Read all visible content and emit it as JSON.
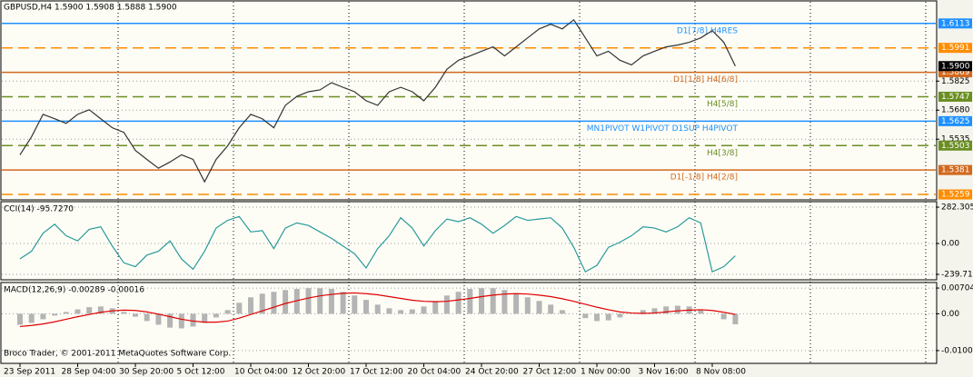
{
  "chart_data": [
    {
      "type": "line",
      "title": "GBPUSD,H4  1.5900 1.5908 1.5888 1.5900",
      "footer": "Broco Trader, © 2001-2011 MetaQuotes Software Corp.",
      "categories": [
        "23 Sep 2011",
        null,
        null,
        null,
        null,
        "28 Sep 04:00",
        null,
        null,
        null,
        null,
        "30 Sep 20:00",
        null,
        null,
        null,
        null,
        "5 Oct 12:00",
        null,
        null,
        null,
        null,
        "10 Oct 04:00",
        null,
        null,
        null,
        null,
        "12 Oct 20:00",
        null,
        null,
        null,
        null,
        "17 Oct 12:00",
        null,
        null,
        null,
        null,
        "20 Oct 04:00",
        null,
        null,
        null,
        null,
        "24 Oct 20:00",
        null,
        null,
        null,
        null,
        "27 Oct 12:00",
        null,
        null,
        null,
        null,
        "1 Nov 00:00",
        null,
        null,
        null,
        null,
        "3 Nov 16:00",
        null,
        null,
        null,
        null,
        "8 Nov 08:00",
        null,
        null
      ],
      "series": [
        {
          "color": "#333333",
          "values": [
            1.5457,
            1.5547,
            1.5659,
            1.5637,
            1.5614,
            1.5659,
            1.5682,
            1.5637,
            1.5592,
            1.5569,
            1.5479,
            1.5434,
            1.539,
            1.5421,
            1.5457,
            1.5434,
            1.5322,
            1.5434,
            1.5502,
            1.5592,
            1.5659,
            1.5637,
            1.5592,
            1.5704,
            1.5749,
            1.5772,
            1.5781,
            1.5817,
            1.5794,
            1.5772,
            1.5727,
            1.5704,
            1.5772,
            1.5794,
            1.5772,
            1.5727,
            1.5794,
            1.5884,
            1.5929,
            1.5951,
            1.5974,
            1.5996,
            1.5951,
            1.5996,
            1.6041,
            1.6086,
            1.6109,
            1.6086,
            1.6131,
            1.6041,
            1.5951,
            1.5974,
            1.5929,
            1.5906,
            1.5951,
            1.5974,
            1.5996,
            1.6005,
            1.6019,
            1.6041,
            1.6077,
            1.6019,
            1.59
          ]
        }
      ],
      "ylim": [
        1.5232,
        1.6221
      ],
      "yticks": [
        1.5825,
        {
          "value": 1.568,
          "label": "1.5680"
        },
        1.5535
      ],
      "current": {
        "value": 1.59,
        "label": "1.5900"
      },
      "levels": [
        {
          "value": 1.6113,
          "color": "#1e90ff",
          "dash": false,
          "label": "D1[7/8] H4RES"
        },
        {
          "value": 1.5991,
          "color": "#ff8c00",
          "dash": true
        },
        {
          "value": 1.5869,
          "color": "#d2691e",
          "dash": false,
          "label": "D1[1/8] H4[6/8]"
        },
        {
          "value": 1.5747,
          "color": "#6b8e23",
          "dash": true,
          "label": "H4[5/8]"
        },
        {
          "value": 1.5625,
          "color": "#1e90ff",
          "dash": false,
          "label": "MN1PIVOT W1PIVOT D1SUP H4PIVOT"
        },
        {
          "value": 1.5503,
          "color": "#6b8e23",
          "dash": true,
          "label": "H4[3/8]"
        },
        {
          "value": 1.5381,
          "color": "#d2691e",
          "dash": false,
          "label": "D1[-1/8] H4[2/8]"
        },
        {
          "value": 1.5259,
          "color": "#ff8c00",
          "dash": true
        }
      ]
    },
    {
      "type": "line",
      "title": "CCI(14) -95.7270",
      "series": [
        {
          "color": "#2a9a9a",
          "values": [
            -120,
            -60,
            80,
            150,
            60,
            20,
            110,
            130,
            -20,
            -150,
            -180,
            -90,
            -60,
            20,
            -120,
            -200,
            -60,
            120,
            180,
            210,
            90,
            100,
            -40,
            120,
            160,
            140,
            90,
            40,
            -20,
            -80,
            -190,
            -40,
            60,
            200,
            120,
            -20,
            100,
            190,
            170,
            200,
            150,
            80,
            140,
            210,
            180,
            190,
            200,
            120,
            -30,
            -220,
            -170,
            -30,
            10,
            60,
            130,
            120,
            90,
            130,
            200,
            160,
            -220,
            -180,
            -95.727
          ]
        }
      ],
      "ylim": [
        -282,
        325
      ],
      "yticks": [
        282.305,
        {
          "value": 0,
          "label": "0.00"
        },
        -239.711
      ]
    },
    {
      "type": "macd",
      "title": "MACD(12,26,9) -0.00289 -0.00016",
      "series": [
        {
          "color": "#b4b4b4",
          "values": [
            -0.003,
            -0.0025,
            -0.0015,
            -0.0005,
            0.0005,
            0.0012,
            0.0018,
            0.002,
            0.0015,
            0.0005,
            -0.0008,
            -0.002,
            -0.003,
            -0.0038,
            -0.004,
            -0.0035,
            -0.0025,
            -0.001,
            0.001,
            0.003,
            0.0045,
            0.0055,
            0.006,
            0.0065,
            0.0068,
            0.007,
            0.007,
            0.0068,
            0.006,
            0.005,
            0.0038,
            0.0025,
            0.0015,
            0.001,
            0.0012,
            0.002,
            0.0035,
            0.005,
            0.006,
            0.0068,
            0.007,
            0.007,
            0.0065,
            0.0055,
            0.0045,
            0.0035,
            0.0025,
            0.001,
            0,
            -0.0012,
            -0.002,
            -0.0018,
            -0.001,
            0,
            0.001,
            0.0015,
            0.002,
            0.0022,
            0.002,
            0.0012,
            0,
            -0.0015,
            -0.00289
          ]
        },
        {
          "color": "#e00000",
          "values": [
            -0.0035,
            -0.0032,
            -0.0028,
            -0.0022,
            -0.0015,
            -0.0008,
            -0.0002,
            0.0004,
            0.0008,
            0.001,
            0.0009,
            0.0005,
            -0.0001,
            -0.0008,
            -0.0015,
            -0.002,
            -0.0023,
            -0.0023,
            -0.002,
            -0.0012,
            -0.0002,
            0.0008,
            0.0018,
            0.0028,
            0.0036,
            0.0043,
            0.0049,
            0.0053,
            0.0056,
            0.0057,
            0.0055,
            0.0052,
            0.0047,
            0.0042,
            0.0037,
            0.0034,
            0.0033,
            0.0034,
            0.0038,
            0.0042,
            0.0047,
            0.0051,
            0.0054,
            0.0055,
            0.0054,
            0.0051,
            0.0047,
            0.0041,
            0.0034,
            0.0026,
            0.0018,
            0.0011,
            0.0005,
            0.0002,
            0.0001,
            0.0002,
            0.0005,
            0.0008,
            0.001,
            0.0011,
            0.0009,
            0.0004,
            -0.00016
          ]
        }
      ],
      "ylim": [
        -0.01358,
        0.00855
      ],
      "yticks": [
        0.00704,
        {
          "value": 0,
          "label": "0.00"
        },
        -0.01008
      ]
    }
  ]
}
